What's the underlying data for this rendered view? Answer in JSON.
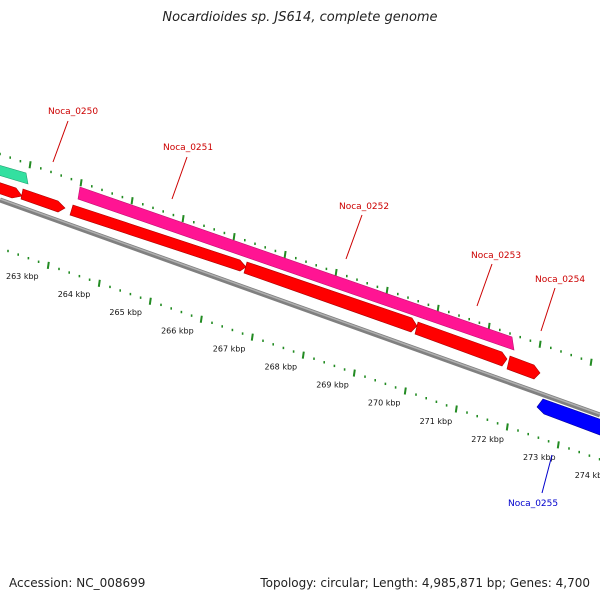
{
  "title": "Nocardioides sp. JS614, complete genome",
  "footer": {
    "accession": "Accession: NC_008699",
    "topology": "Topology: circular; Length: 4,985,871 bp; Genes: 4,700"
  },
  "colors": {
    "backbone": "#808080",
    "tick": "#228b22",
    "label_red": "#cc0000",
    "label_blue": "#0000cc",
    "gene_red": "#ff0000",
    "gene_magenta": "#ff1493",
    "gene_green": "#33e0a0",
    "gene_blue": "#0000ff"
  },
  "genes": [
    {
      "name": "Noca_0250",
      "color": "gene_red",
      "strand": "+"
    },
    {
      "name": "Noca_0251",
      "color": "gene_red",
      "strand": "+"
    },
    {
      "name": "Noca_0252",
      "color": "gene_red",
      "strand": "+"
    },
    {
      "name": "Noca_0253",
      "color": "gene_red",
      "strand": "+"
    },
    {
      "name": "Noca_0254",
      "color": "gene_red",
      "strand": "+"
    },
    {
      "name": "Noca_0255",
      "color": "gene_blue",
      "strand": "-"
    }
  ],
  "kbp_labels": [
    "263 kbp",
    "264 kbp",
    "265 kbp",
    "266 kbp",
    "267 kbp",
    "268 kbp",
    "269 kbp",
    "270 kbp",
    "271 kbp",
    "272 kbp",
    "273 kbp",
    "274 kbp"
  ]
}
